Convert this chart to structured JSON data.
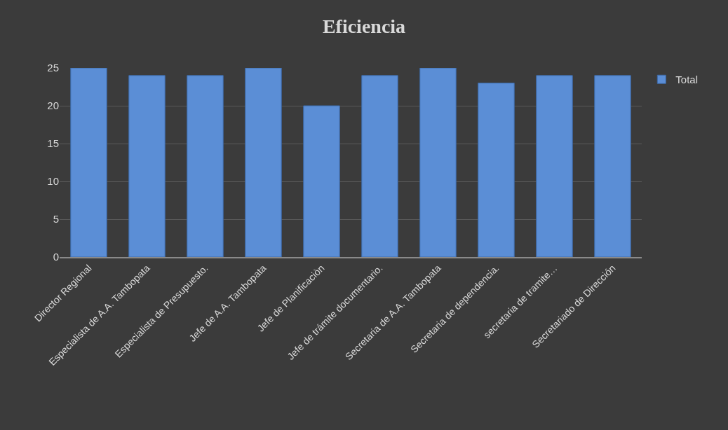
{
  "chart_data": {
    "type": "bar",
    "title": "Eficiencia",
    "categories": [
      "Director Regional",
      "Especialista de A.A. Tambopata",
      "Especialista de Presupuesto.",
      "Jefe de A.A. Tambopata",
      "Jefe de Planificaciòn",
      "Jefe de trámite documentario.",
      "Secretaria de A.A. Tambopata",
      "Secretaria de dependencia.",
      "secretaria de tramite…",
      "Secretariado de Dirección"
    ],
    "series": [
      {
        "name": "Total",
        "color": "#5b8ed6",
        "values": [
          25,
          24,
          24,
          25,
          20,
          24,
          25,
          23,
          24,
          24
        ]
      }
    ],
    "ylim": [
      0,
      25
    ],
    "yticks": [
      0,
      5,
      10,
      15,
      20,
      25
    ],
    "grid": "y",
    "legend": "right"
  }
}
